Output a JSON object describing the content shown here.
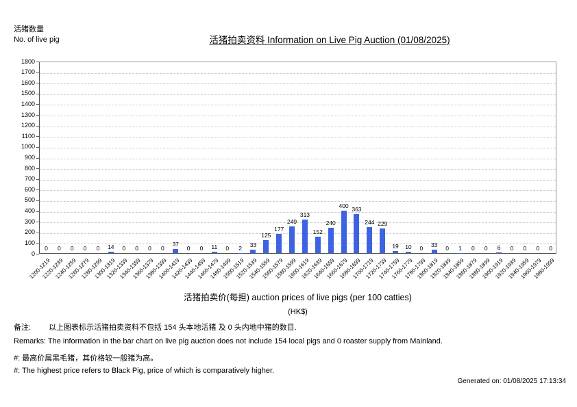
{
  "page": {
    "y_axis_caption_cjk": "活猪数量",
    "y_axis_caption_en": "No. of live pig",
    "title": "活猪拍卖资料 Information on Live Pig Auction (01/08/2025)",
    "x_axis_title": "活猪拍卖价(每担) auction prices of live pigs (per 100 catties)",
    "x_axis_unit": "(HK$)",
    "remark_cjk_label": "备注:",
    "remark_cjk_text": "以上图表标示活猪拍卖资料不包括 154 头本地活猪 及 0 头内地中猪的数目.",
    "remark_en": "Remarks: The information in the bar chart on live pig auction does not include 154 local pigs and 0 roaster supply from Mainland.",
    "note_cjk": "#: 最高价属黑毛猪，其价格较一般猪为高。",
    "note_en": "#: The highest price refers to Black Pig, price of which is comparatively higher.",
    "generated": "Generated on: 01/08/2025 17:13:34"
  },
  "chart_data": {
    "type": "bar",
    "title": "活猪拍卖资料 Information on Live Pig Auction (01/08/2025)",
    "xlabel": "活猪拍卖价(每担) auction prices of live pigs (per 100 catties) (HK$)",
    "ylabel": "活猪数量 No. of live pig",
    "categories": [
      "1200-1219",
      "1220-1239",
      "1240-1259",
      "1260-1279",
      "1280-1299",
      "1300-1319",
      "1320-1339",
      "1340-1359",
      "1360-1379",
      "1380-1399",
      "1400-1419",
      "1420-1439",
      "1440-1459",
      "1460-1479",
      "1480-1499",
      "1500-1519",
      "1520-1539",
      "1540-1559",
      "1560-1579",
      "1580-1599",
      "1600-1619",
      "1620-1639",
      "1640-1659",
      "1660-1679",
      "1680-1699",
      "1700-1719",
      "1720-1739",
      "1740-1759",
      "1760-1779",
      "1780-1799",
      "1800-1819",
      "1820-1839",
      "1840-1859",
      "1860-1879",
      "1880-1899",
      "1900-1919",
      "1920-1939",
      "1940-1959",
      "1960-1979",
      "1980-1999"
    ],
    "values": [
      0,
      0,
      0,
      0,
      0,
      14,
      0,
      0,
      0,
      0,
      37,
      0,
      0,
      11,
      0,
      2,
      33,
      125,
      177,
      249,
      313,
      152,
      240,
      400,
      363,
      244,
      229,
      19,
      10,
      0,
      33,
      0,
      1,
      0,
      0,
      6,
      0,
      0,
      0,
      0
    ],
    "ylim": [
      0,
      1800
    ],
    "ytick_step": 100,
    "bar_color": "#3D63E3",
    "grid": true,
    "legend": false,
    "value_labels": true
  }
}
